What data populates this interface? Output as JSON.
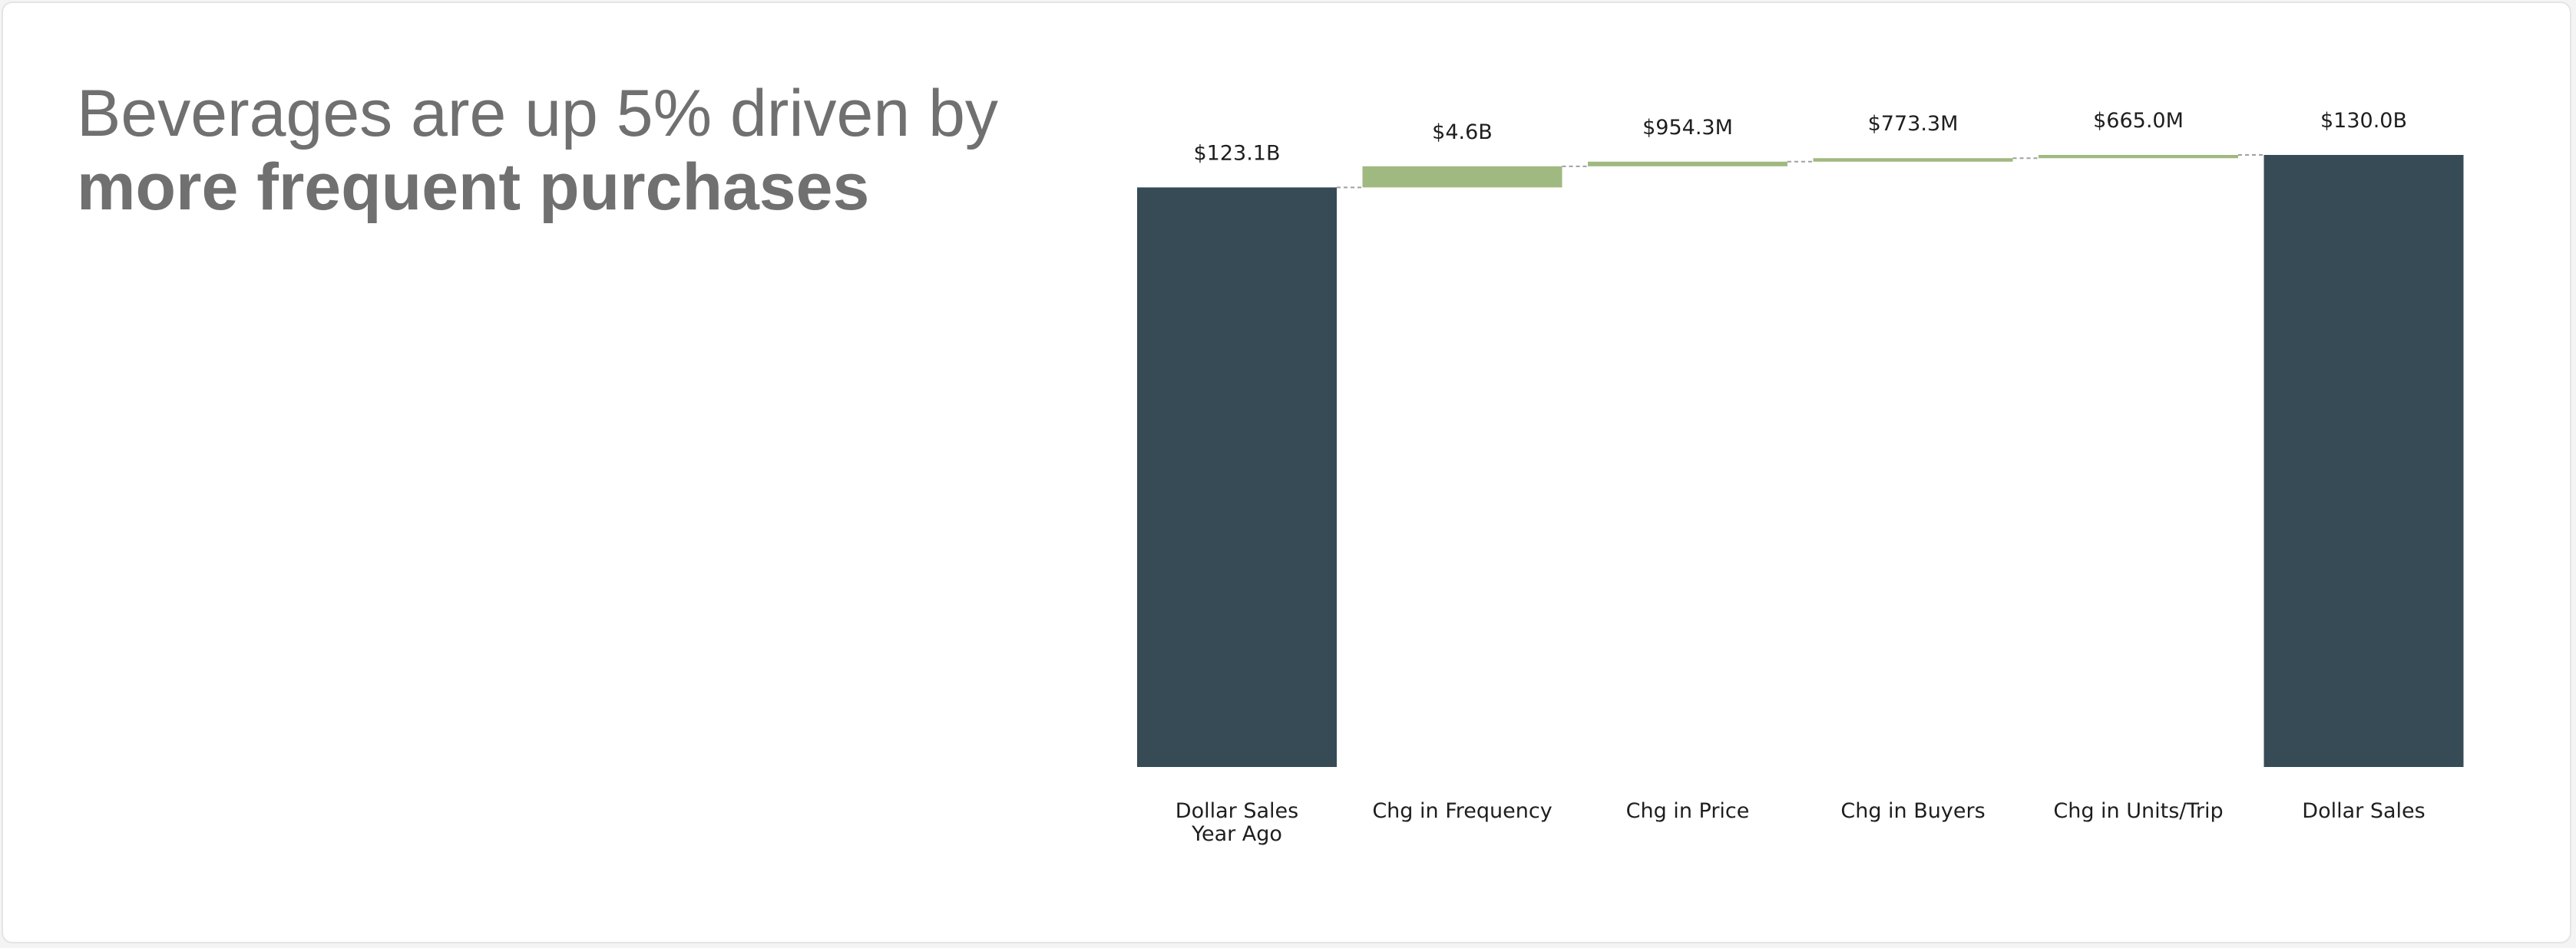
{
  "headline": {
    "line1": "Beverages are up 5% driven by",
    "line2": "more frequent purchases"
  },
  "colors": {
    "total": "#364b55",
    "increase": "#a0b980",
    "connector": "#a0a0a0"
  },
  "chart_data": {
    "type": "waterfall",
    "title": "Beverages are up 5% driven by more frequent purchases",
    "unit": "USD",
    "categories": [
      [
        "Dollar Sales",
        "Year Ago"
      ],
      [
        "Chg in Frequency"
      ],
      [
        "Chg in Price"
      ],
      [
        "Chg in Buyers"
      ],
      [
        "Chg in Units/Trip"
      ],
      [
        "Dollar Sales"
      ]
    ],
    "kinds": [
      "total",
      "delta",
      "delta",
      "delta",
      "delta",
      "total"
    ],
    "values": [
      123.1,
      4.6,
      0.9543,
      0.7733,
      0.665,
      130.0
    ],
    "value_labels": [
      "$123.1B",
      "$4.6B",
      "$954.3M",
      "$773.3M",
      "$665.0M",
      "$130.0B"
    ],
    "value_unit": "B",
    "y_baseline": 0,
    "axis_visible": false,
    "grid": false,
    "connectors": true
  }
}
